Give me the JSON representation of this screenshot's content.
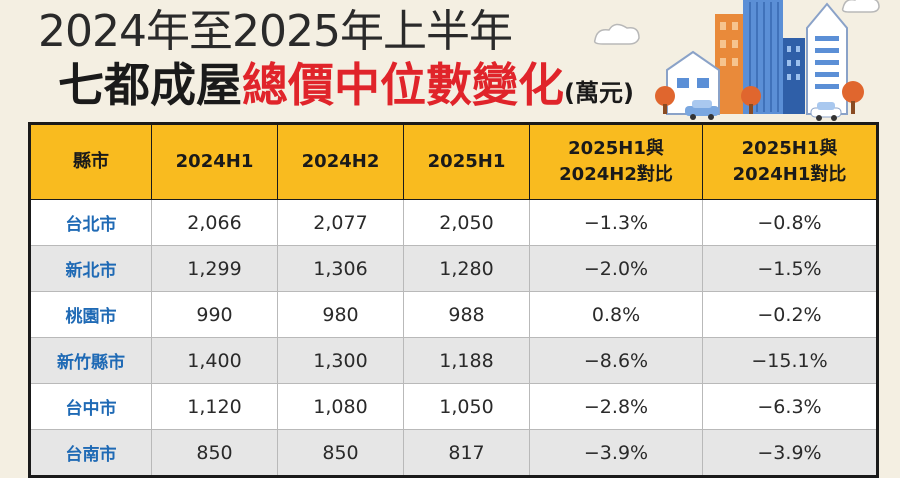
{
  "title": {
    "line1": "2024年至2025年上半年",
    "line2_prefix": "七都成屋",
    "line2_accent": "總價中位數變化",
    "unit": "(萬元)"
  },
  "colors": {
    "accent": "#e0242a",
    "header_bg": "#f9bb1f",
    "city_text": "#1f6ab5",
    "row_alt": "#e6e6e6"
  },
  "table": {
    "headers": [
      {
        "line1": "縣市",
        "line2": ""
      },
      {
        "line1": "2024H1",
        "line2": ""
      },
      {
        "line1": "2024H2",
        "line2": ""
      },
      {
        "line1": "2025H1",
        "line2": ""
      },
      {
        "line1": "2025H1與",
        "line2": "2024H2對比"
      },
      {
        "line1": "2025H1與",
        "line2": "2024H1對比"
      }
    ],
    "rows": [
      {
        "city": "台北市",
        "h1_2024": "2,066",
        "h2_2024": "2,077",
        "h1_2025": "2,050",
        "vs_h2": "−1.3%",
        "vs_h1": "−0.8%"
      },
      {
        "city": "新北市",
        "h1_2024": "1,299",
        "h2_2024": "1,306",
        "h1_2025": "1,280",
        "vs_h2": "−2.0%",
        "vs_h1": "−1.5%"
      },
      {
        "city": "桃園市",
        "h1_2024": "990",
        "h2_2024": "980",
        "h1_2025": "988",
        "vs_h2": "0.8%",
        "vs_h1": "−0.2%"
      },
      {
        "city": "新竹縣市",
        "h1_2024": "1,400",
        "h2_2024": "1,300",
        "h1_2025": "1,188",
        "vs_h2": "−8.6%",
        "vs_h1": "−15.1%"
      },
      {
        "city": "台中市",
        "h1_2024": "1,120",
        "h2_2024": "1,080",
        "h1_2025": "1,050",
        "vs_h2": "−2.8%",
        "vs_h1": "−6.3%"
      },
      {
        "city": "台南市",
        "h1_2024": "850",
        "h2_2024": "850",
        "h1_2025": "817",
        "vs_h2": "−3.9%",
        "vs_h1": "−3.9%"
      }
    ]
  }
}
